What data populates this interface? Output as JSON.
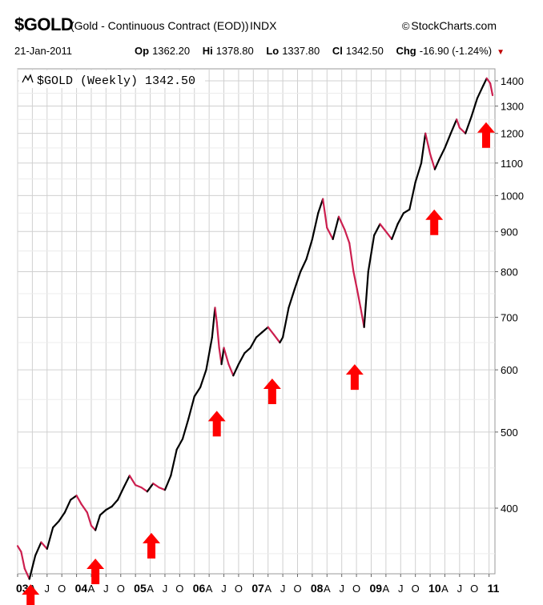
{
  "header": {
    "ticker": "$GOLD",
    "description": "(Gold - Continuous Contract (EOD))",
    "exchange": "INDX",
    "brand": "StockCharts.com",
    "brand_icon": "copyright-icon",
    "date": "21-Jan-2011",
    "quote": {
      "op_label": "Op",
      "op": "1362.20",
      "hi_label": "Hi",
      "hi": "1378.80",
      "lo_label": "Lo",
      "lo": "1337.80",
      "cl_label": "Cl",
      "cl": "1342.50",
      "chg_label": "Chg",
      "chg": "-16.90 (-1.24%)"
    },
    "down_color": "#c00000"
  },
  "chart_data": {
    "type": "line",
    "title": "$GOLD (Weekly) 1342.50",
    "legend_icon": "price-line-icon",
    "y_scale": "log",
    "ylim": [
      330,
      1450
    ],
    "grid": true,
    "line_colors": {
      "up": "#000000",
      "down": "#cc1f4f"
    },
    "arrow_color": "#ff0000",
    "y_ticks": [
      400,
      500,
      600,
      700,
      800,
      900,
      1000,
      1100,
      1200,
      1300,
      1400
    ],
    "x_tick_labels": [
      {
        "t": 2003.0,
        "label": "03",
        "major": true
      },
      {
        "t": 2003.25,
        "label": "A"
      },
      {
        "t": 2003.5,
        "label": "J"
      },
      {
        "t": 2003.75,
        "label": "O"
      },
      {
        "t": 2004.0,
        "label": "04",
        "major": true
      },
      {
        "t": 2004.25,
        "label": "A"
      },
      {
        "t": 2004.5,
        "label": "J"
      },
      {
        "t": 2004.75,
        "label": "O"
      },
      {
        "t": 2005.0,
        "label": "05",
        "major": true
      },
      {
        "t": 2005.25,
        "label": "A"
      },
      {
        "t": 2005.5,
        "label": "J"
      },
      {
        "t": 2005.75,
        "label": "O"
      },
      {
        "t": 2006.0,
        "label": "06",
        "major": true
      },
      {
        "t": 2006.25,
        "label": "A"
      },
      {
        "t": 2006.5,
        "label": "J"
      },
      {
        "t": 2006.75,
        "label": "O"
      },
      {
        "t": 2007.0,
        "label": "07",
        "major": true
      },
      {
        "t": 2007.25,
        "label": "A"
      },
      {
        "t": 2007.5,
        "label": "J"
      },
      {
        "t": 2007.75,
        "label": "O"
      },
      {
        "t": 2008.0,
        "label": "08",
        "major": true
      },
      {
        "t": 2008.25,
        "label": "A"
      },
      {
        "t": 2008.5,
        "label": "J"
      },
      {
        "t": 2008.75,
        "label": "O"
      },
      {
        "t": 2009.0,
        "label": "09",
        "major": true
      },
      {
        "t": 2009.25,
        "label": "A"
      },
      {
        "t": 2009.5,
        "label": "J"
      },
      {
        "t": 2009.75,
        "label": "O"
      },
      {
        "t": 2010.0,
        "label": "10",
        "major": true
      },
      {
        "t": 2010.25,
        "label": "A"
      },
      {
        "t": 2010.5,
        "label": "J"
      },
      {
        "t": 2010.75,
        "label": "O"
      },
      {
        "t": 2011.0,
        "label": "11",
        "major": true
      }
    ],
    "series": [
      {
        "x": [
          2003.0,
          2003.06,
          2003.12,
          2003.2,
          2003.3,
          2003.4,
          2003.5,
          2003.6,
          2003.7,
          2003.8,
          2003.9,
          2004.0,
          2004.08,
          2004.18,
          2004.25,
          2004.32,
          2004.4,
          2004.5,
          2004.6,
          2004.7,
          2004.8,
          2004.9,
          2005.0,
          2005.1,
          2005.2,
          2005.3,
          2005.4,
          2005.5,
          2005.6,
          2005.7,
          2005.8,
          2005.9,
          2006.0,
          2006.1,
          2006.2,
          2006.3,
          2006.35,
          2006.38,
          2006.42,
          2006.46,
          2006.5,
          2006.58,
          2006.66,
          2006.75,
          2006.85,
          2006.95,
          2007.05,
          2007.15,
          2007.25,
          2007.35,
          2007.45,
          2007.5,
          2007.6,
          2007.7,
          2007.8,
          2007.9,
          2008.0,
          2008.1,
          2008.18,
          2008.25,
          2008.35,
          2008.45,
          2008.55,
          2008.63,
          2008.7,
          2008.76,
          2008.82,
          2008.88,
          2008.95,
          2009.05,
          2009.15,
          2009.25,
          2009.35,
          2009.45,
          2009.55,
          2009.65,
          2009.75,
          2009.85,
          2009.92,
          2010.0,
          2010.08,
          2010.15,
          2010.25,
          2010.35,
          2010.45,
          2010.5,
          2010.6,
          2010.7,
          2010.8,
          2010.9,
          2010.96,
          2011.02,
          2011.06
        ],
        "y": [
          358,
          352,
          335,
          325,
          348,
          362,
          355,
          378,
          385,
          395,
          410,
          415,
          405,
          395,
          380,
          375,
          392,
          398,
          402,
          410,
          425,
          440,
          428,
          425,
          420,
          430,
          425,
          422,
          440,
          475,
          490,
          520,
          555,
          570,
          600,
          660,
          720,
          690,
          640,
          610,
          640,
          610,
          590,
          610,
          630,
          640,
          660,
          670,
          680,
          665,
          650,
          660,
          720,
          760,
          800,
          830,
          880,
          950,
          990,
          910,
          880,
          940,
          905,
          870,
          800,
          760,
          720,
          680,
          800,
          890,
          920,
          900,
          880,
          920,
          950,
          960,
          1040,
          1100,
          1200,
          1130,
          1080,
          1110,
          1150,
          1200,
          1250,
          1220,
          1200,
          1260,
          1330,
          1380,
          1410,
          1390,
          1342
        ]
      }
    ],
    "arrows": [
      {
        "x": 2003.22,
        "y": 320
      },
      {
        "x": 2004.32,
        "y": 345
      },
      {
        "x": 2005.27,
        "y": 372
      },
      {
        "x": 2006.38,
        "y": 532
      },
      {
        "x": 2007.32,
        "y": 585
      },
      {
        "x": 2008.72,
        "y": 610
      },
      {
        "x": 2010.07,
        "y": 960
      },
      {
        "x": 2010.95,
        "y": 1240
      }
    ]
  }
}
